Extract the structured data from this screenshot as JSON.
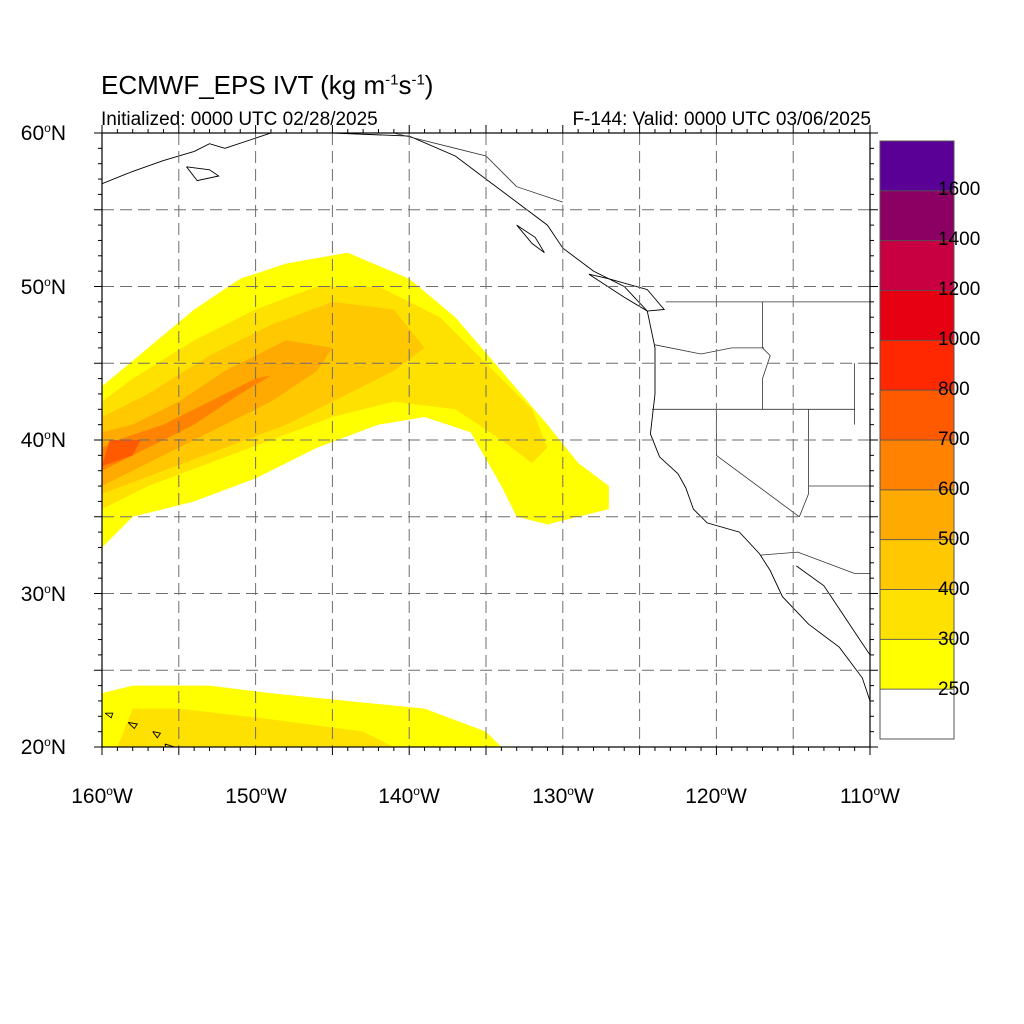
{
  "title": {
    "prefix": "ECMWF_EPS IVT (kg m",
    "exp1": "-1",
    "mid": "s",
    "exp2": "-1",
    "suffix": ")"
  },
  "subtitle_left": "Initialized: 0000 UTC 02/28/2025",
  "subtitle_right": "F-144: Valid: 0000 UTC 03/06/2025",
  "map": {
    "lon_range": [
      -160,
      -110
    ],
    "lat_range": [
      20,
      60
    ],
    "gridlines": "dashed",
    "lat_ticks": [
      {
        "value": 60,
        "num": "60",
        "hemi": "N"
      },
      {
        "value": 50,
        "num": "50",
        "hemi": "N"
      },
      {
        "value": 40,
        "num": "40",
        "hemi": "N"
      },
      {
        "value": 30,
        "num": "30",
        "hemi": "N"
      },
      {
        "value": 20,
        "num": "20",
        "hemi": "N"
      }
    ],
    "lon_ticks": [
      {
        "value": -160,
        "num": "160",
        "hemi": "W"
      },
      {
        "value": -150,
        "num": "150",
        "hemi": "W"
      },
      {
        "value": -140,
        "num": "140",
        "hemi": "W"
      },
      {
        "value": -130,
        "num": "130",
        "hemi": "W"
      },
      {
        "value": -120,
        "num": "120",
        "hemi": "W"
      },
      {
        "value": -110,
        "num": "110",
        "hemi": "W"
      }
    ]
  },
  "colorbar": {
    "levels": [
      250,
      300,
      400,
      500,
      600,
      700,
      800,
      1000,
      1200,
      1400,
      1600
    ],
    "labels": [
      "250",
      "300",
      "400",
      "500",
      "600",
      "700",
      "800",
      "1000",
      "1200",
      "1400",
      "1600"
    ],
    "colors": [
      "#ffffff",
      "#ffff00",
      "#ffe100",
      "#ffc800",
      "#ffaa00",
      "#ff8200",
      "#ff5a00",
      "#ff2800",
      "#e60012",
      "#c80041",
      "#8c0064",
      "#5a0096"
    ]
  },
  "ivt_regions": [
    {
      "level": "250-300",
      "lon_lat": [
        [
          -160,
          33
        ],
        [
          -158,
          35
        ],
        [
          -154,
          36
        ],
        [
          -150,
          37.5
        ],
        [
          -146,
          39.5
        ],
        [
          -142,
          41
        ],
        [
          -139,
          41.5
        ],
        [
          -136,
          40.5
        ],
        [
          -134,
          37
        ],
        [
          -133,
          35
        ],
        [
          -131,
          34.5
        ],
        [
          -129,
          35
        ],
        [
          -127,
          35.5
        ],
        [
          -127,
          37
        ],
        [
          -129,
          38.5
        ],
        [
          -131,
          41
        ],
        [
          -134,
          44.5
        ],
        [
          -137,
          48
        ],
        [
          -140,
          50.5
        ],
        [
          -144,
          52.2
        ],
        [
          -148,
          51.5
        ],
        [
          -151,
          50.5
        ],
        [
          -154,
          48.5
        ],
        [
          -157,
          46
        ],
        [
          -160,
          43.5
        ]
      ]
    },
    {
      "level": "300-400",
      "lon_lat": [
        [
          -160,
          35.5
        ],
        [
          -157,
          37
        ],
        [
          -153,
          38.5
        ],
        [
          -149,
          40
        ],
        [
          -145,
          41.5
        ],
        [
          -141,
          42.5
        ],
        [
          -137,
          42
        ],
        [
          -134,
          40
        ],
        [
          -132,
          38.5
        ],
        [
          -131,
          39.5
        ],
        [
          -132,
          42
        ],
        [
          -135,
          45
        ],
        [
          -138,
          48
        ],
        [
          -142,
          50
        ],
        [
          -146,
          50
        ],
        [
          -150,
          48.5
        ],
        [
          -154,
          46.5
        ],
        [
          -158,
          44
        ],
        [
          -160,
          42.5
        ]
      ]
    },
    {
      "level": "400-500",
      "lon_lat": [
        [
          -160,
          36.5
        ],
        [
          -156,
          38
        ],
        [
          -152,
          39.5
        ],
        [
          -148,
          41
        ],
        [
          -144,
          43
        ],
        [
          -141,
          44.5
        ],
        [
          -139,
          46
        ],
        [
          -141,
          48.5
        ],
        [
          -145,
          49
        ],
        [
          -149,
          47.5
        ],
        [
          -153,
          45.5
        ],
        [
          -157,
          43
        ],
        [
          -160,
          41.5
        ]
      ]
    },
    {
      "level": "500-600",
      "lon_lat": [
        [
          -160,
          37
        ],
        [
          -157,
          38.5
        ],
        [
          -153,
          40.5
        ],
        [
          -149,
          42.5
        ],
        [
          -146,
          44.5
        ],
        [
          -145,
          46
        ],
        [
          -148,
          46.5
        ],
        [
          -152,
          44.5
        ],
        [
          -155,
          42.5
        ],
        [
          -158,
          41
        ],
        [
          -160,
          40.5
        ]
      ]
    },
    {
      "level": "600-700",
      "lon_lat": [
        [
          -160,
          38
        ],
        [
          -157,
          39.5
        ],
        [
          -154,
          41
        ],
        [
          -151,
          43
        ],
        [
          -149,
          44.2
        ],
        [
          -150,
          44
        ],
        [
          -153,
          42.5
        ],
        [
          -156,
          41
        ],
        [
          -159,
          40
        ],
        [
          -160,
          39.5
        ]
      ]
    },
    {
      "level": "700-800",
      "lon_lat": [
        [
          -160,
          38.3
        ],
        [
          -158,
          39
        ],
        [
          -157.5,
          40
        ],
        [
          -159.5,
          40
        ]
      ]
    },
    {
      "level": "250-300",
      "lon_lat": [
        [
          -160,
          20
        ],
        [
          -134,
          20
        ],
        [
          -135,
          21
        ],
        [
          -139,
          22.5
        ],
        [
          -144,
          23
        ],
        [
          -149,
          23.5
        ],
        [
          -153,
          24
        ],
        [
          -158,
          24
        ],
        [
          -160,
          23.5
        ]
      ]
    },
    {
      "level": "300-400",
      "lon_lat": [
        [
          -159,
          20
        ],
        [
          -141,
          20
        ],
        [
          -143,
          21
        ],
        [
          -149,
          21.8
        ],
        [
          -155,
          22.5
        ],
        [
          -158,
          22.5
        ]
      ]
    }
  ],
  "coastlines": [
    {
      "name": "North America west coast",
      "lon_lat": [
        [
          -152,
          59
        ],
        [
          -149,
          60
        ],
        [
          -145,
          60
        ],
        [
          -140,
          59.8
        ],
        [
          -137,
          58.5
        ],
        [
          -135,
          57
        ],
        [
          -133,
          55.5
        ],
        [
          -131,
          54
        ],
        [
          -130,
          52.5
        ],
        [
          -128,
          51
        ],
        [
          -126,
          50
        ],
        [
          -124.5,
          48.4
        ],
        [
          -124,
          46
        ],
        [
          -124,
          43
        ],
        [
          -124.3,
          40.4
        ],
        [
          -123.7,
          38.9
        ],
        [
          -122.5,
          37.8
        ],
        [
          -122,
          36.9
        ],
        [
          -121.5,
          35.5
        ],
        [
          -120.6,
          34.6
        ],
        [
          -118.5,
          34
        ],
        [
          -117.2,
          32.6
        ],
        [
          -116.5,
          31.5
        ],
        [
          -115.7,
          29.8
        ],
        [
          -114,
          28
        ],
        [
          -112,
          26.5
        ],
        [
          -110.5,
          24.5
        ],
        [
          -110,
          23
        ]
      ]
    },
    {
      "name": "Gulf of California",
      "lon_lat": [
        [
          -114.8,
          31.8
        ],
        [
          -113,
          30.5
        ],
        [
          -112,
          29
        ],
        [
          -111,
          27.5
        ],
        [
          -110,
          26
        ],
        [
          -110,
          24.8
        ]
      ]
    },
    {
      "name": "Alaska Peninsula",
      "lon_lat": [
        [
          -160,
          56.7
        ],
        [
          -158,
          57.5
        ],
        [
          -156,
          58.2
        ],
        [
          -154,
          58.8
        ],
        [
          -153,
          59.3
        ],
        [
          -152,
          59
        ]
      ]
    },
    {
      "name": "Vancouver Island",
      "lon_lat": [
        [
          -128.3,
          50.8
        ],
        [
          -126,
          49.3
        ],
        [
          -124.5,
          48.4
        ],
        [
          -123.4,
          48.5
        ],
        [
          -124.5,
          49.8
        ],
        [
          -127,
          50.5
        ],
        [
          -128.3,
          50.8
        ]
      ]
    },
    {
      "name": "Haida Gwaii",
      "lon_lat": [
        [
          -133,
          54
        ],
        [
          -131.8,
          53.2
        ],
        [
          -131.2,
          52.2
        ],
        [
          -132,
          52.8
        ],
        [
          -133,
          54
        ]
      ]
    },
    {
      "name": "Kodiak Island",
      "lon_lat": [
        [
          -154.5,
          57.8
        ],
        [
          -153,
          57.6
        ],
        [
          -152.4,
          57.2
        ],
        [
          -153.8,
          56.9
        ],
        [
          -154.5,
          57.8
        ]
      ]
    },
    {
      "name": "Big Island",
      "lon_lat": [
        [
          -155.9,
          20.2
        ],
        [
          -155,
          19.9
        ],
        [
          -154.8,
          19.5
        ],
        [
          -155.6,
          19.1
        ],
        [
          -155.9,
          20.2
        ]
      ]
    },
    {
      "name": "Maui",
      "lon_lat": [
        [
          -156.7,
          21
        ],
        [
          -156.2,
          20.9
        ],
        [
          -156.4,
          20.6
        ],
        [
          -156.7,
          21
        ]
      ]
    },
    {
      "name": "Oahu",
      "lon_lat": [
        [
          -158.3,
          21.6
        ],
        [
          -157.7,
          21.5
        ],
        [
          -157.9,
          21.2
        ],
        [
          -158.3,
          21.6
        ]
      ]
    },
    {
      "name": "Kauai",
      "lon_lat": [
        [
          -159.8,
          22.2
        ],
        [
          -159.3,
          22.2
        ],
        [
          -159.4,
          21.9
        ],
        [
          -159.8,
          22.2
        ]
      ]
    }
  ],
  "boundaries": [
    {
      "name": "WA-BC",
      "lon_lat": [
        [
          -123.3,
          49
        ],
        [
          -110,
          49
        ]
      ]
    },
    {
      "name": "WA-OR",
      "lon_lat": [
        [
          -124,
          46.2
        ],
        [
          -121,
          45.6
        ],
        [
          -119,
          46
        ],
        [
          -116.9,
          46
        ]
      ]
    },
    {
      "name": "ID west",
      "lon_lat": [
        [
          -117,
          49
        ],
        [
          -117,
          46
        ],
        [
          -116.5,
          45.5
        ],
        [
          -117,
          44
        ],
        [
          -117,
          42
        ]
      ]
    },
    {
      "name": "OR/ID-CA/NV/UT",
      "lon_lat": [
        [
          -124.2,
          42
        ],
        [
          -111,
          42
        ]
      ]
    },
    {
      "name": "UT-ID/WY",
      "lon_lat": [
        [
          -111,
          45
        ],
        [
          -111,
          41
        ]
      ]
    },
    {
      "name": "CA-NV",
      "lon_lat": [
        [
          -120,
          42
        ],
        [
          -120,
          39
        ],
        [
          -114.6,
          35
        ]
      ]
    },
    {
      "name": "NV-UT/AZ",
      "lon_lat": [
        [
          -114,
          42
        ],
        [
          -114,
          36.5
        ],
        [
          -114.6,
          35
        ]
      ]
    },
    {
      "name": "AZ-UT",
      "lon_lat": [
        [
          -114,
          37
        ],
        [
          -110,
          37
        ]
      ]
    },
    {
      "name": "US-Mexico",
      "lon_lat": [
        [
          -117.1,
          32.5
        ],
        [
          -114.7,
          32.7
        ],
        [
          -111,
          31.3
        ],
        [
          -110,
          31.3
        ]
      ]
    },
    {
      "name": "Alaska-Canada",
      "lon_lat": [
        [
          -141,
          60
        ],
        [
          -137,
          59
        ],
        [
          -135,
          58.5
        ],
        [
          -133,
          56.5
        ],
        [
          -130,
          55.5
        ]
      ]
    }
  ]
}
